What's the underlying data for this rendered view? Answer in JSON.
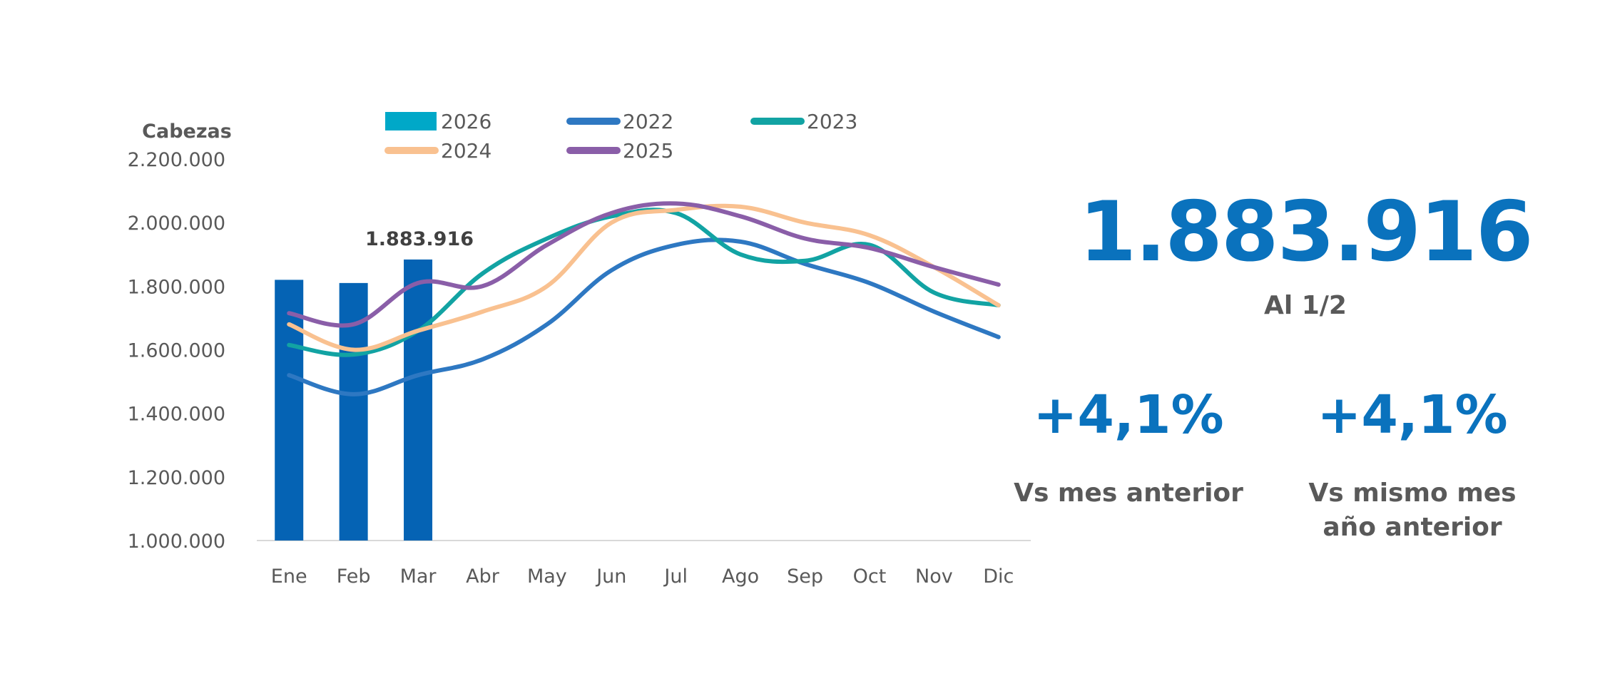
{
  "chart_data": {
    "type": "bar",
    "ylabel": "Cabezas",
    "ylim": [
      1000000,
      2200000
    ],
    "yticks": [
      "1.000.000",
      "1.200.000",
      "1.400.000",
      "1.600.000",
      "1.800.000",
      "2.000.000",
      "2.200.000"
    ],
    "ytick_values": [
      1000000,
      1200000,
      1400000,
      1600000,
      1800000,
      2000000,
      2200000
    ],
    "categories": [
      "Ene",
      "Feb",
      "Mar",
      "Abr",
      "May",
      "Jun",
      "Jul",
      "Ago",
      "Sep",
      "Oct",
      "Nov",
      "Dic"
    ],
    "bar_series": {
      "name": "2026",
      "values": [
        1820000,
        1810000,
        1883916
      ],
      "color": "#0563b4",
      "legend_color": "#00a8c8",
      "label_index": 2,
      "label_text": "1.883.916"
    },
    "series": [
      {
        "name": "2022",
        "color": "#2e78c2",
        "values": [
          1520000,
          1460000,
          1520000,
          1570000,
          1680000,
          1850000,
          1930000,
          1940000,
          1870000,
          1810000,
          1720000,
          1640000
        ]
      },
      {
        "name": "2023",
        "color": "#12a3a3",
        "values": [
          1615000,
          1585000,
          1660000,
          1840000,
          1950000,
          2020000,
          2030000,
          1900000,
          1880000,
          1930000,
          1780000,
          1740000
        ]
      },
      {
        "name": "2024",
        "color": "#f9c190",
        "values": [
          1680000,
          1600000,
          1660000,
          1720000,
          1800000,
          2000000,
          2040000,
          2050000,
          2000000,
          1960000,
          1860000,
          1740000
        ]
      },
      {
        "name": "2025",
        "color": "#8a5ea8",
        "values": [
          1715000,
          1680000,
          1810000,
          1800000,
          1930000,
          2030000,
          2060000,
          2020000,
          1950000,
          1920000,
          1860000,
          1805000
        ]
      }
    ],
    "legend": [
      "2026",
      "2022",
      "2023",
      "2024",
      "2025"
    ]
  },
  "kpi": {
    "value": "1.883.916",
    "date_label": "Al 1/2",
    "change_month": "+4,1%",
    "change_month_label": "Vs mes anterior",
    "change_year": "+4,1%",
    "change_year_label_1": "Vs mismo mes",
    "change_year_label_2": "año anterior"
  }
}
